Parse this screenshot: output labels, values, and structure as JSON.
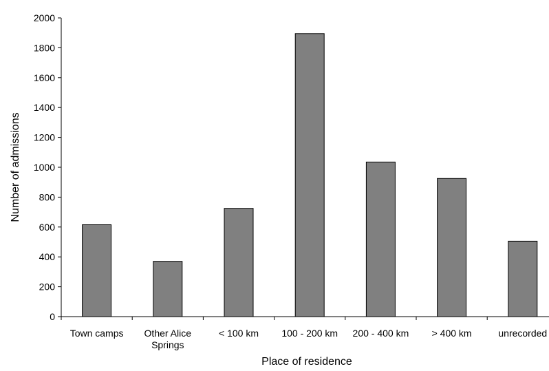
{
  "chart_data": {
    "type": "bar",
    "title": "",
    "xlabel": "Place of residence",
    "ylabel": "Number of admissions",
    "categories": [
      [
        "Town camps"
      ],
      [
        "Other Alice",
        "Springs"
      ],
      [
        "< 100 km"
      ],
      [
        "100 - 200 km"
      ],
      [
        "200 - 400 km"
      ],
      [
        "> 400 km"
      ],
      [
        "unrecorded"
      ]
    ],
    "values": [
      615,
      370,
      725,
      1895,
      1035,
      925,
      505
    ],
    "ylim": [
      0,
      2000
    ],
    "yticks": [
      0,
      200,
      400,
      600,
      800,
      1000,
      1200,
      1400,
      1600,
      1800,
      2000
    ],
    "grid": false,
    "legend": "none",
    "bar_color": "#808080",
    "bar_edge_color": "#000000"
  }
}
